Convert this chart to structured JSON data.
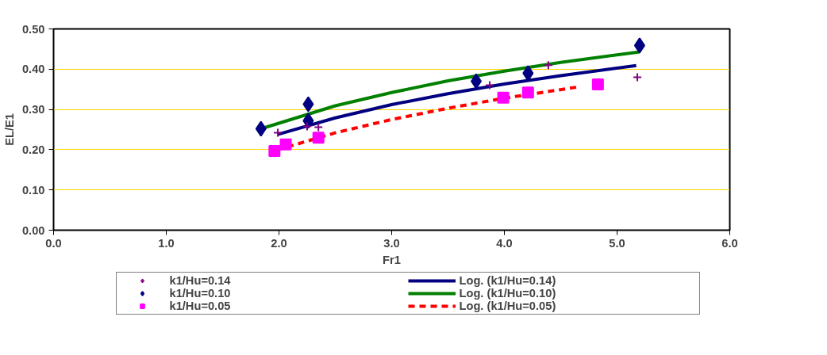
{
  "chart_data": {
    "type": "scatter",
    "xlabel": "Fr1",
    "ylabel": "EL/E1",
    "xlim": [
      0,
      6
    ],
    "ylim": [
      0,
      0.5
    ],
    "xticks": [
      {
        "value": 0,
        "label": "0.0"
      },
      {
        "value": 1,
        "label": "1.0"
      },
      {
        "value": 2,
        "label": "2.0"
      },
      {
        "value": 3,
        "label": "3.0"
      },
      {
        "value": 4,
        "label": "4.0"
      },
      {
        "value": 5,
        "label": "5.0"
      },
      {
        "value": 6,
        "label": "6.0"
      }
    ],
    "yticks": [
      {
        "value": 0,
        "label": "0.00"
      },
      {
        "value": 0.1,
        "label": "0.10"
      },
      {
        "value": 0.2,
        "label": "0.20"
      },
      {
        "value": 0.3,
        "label": "0.30"
      },
      {
        "value": 0.4,
        "label": "0.40"
      },
      {
        "value": 0.5,
        "label": "0.50"
      }
    ],
    "grid": "y",
    "legend": "bottom",
    "series": [
      {
        "name": "k1/Hu=0.14",
        "type": "scatter",
        "marker": "cross",
        "color": "#800080",
        "x": [
          1.99,
          2.25,
          2.35,
          3.87,
          4.39,
          5.18
        ],
        "values": [
          0.242,
          0.258,
          0.256,
          0.36,
          0.41,
          0.38
        ]
      },
      {
        "name": "k1/Hu=0.10",
        "type": "scatter",
        "marker": "diamond",
        "color": "#000080",
        "x": [
          1.84,
          2.26,
          2.26,
          3.75,
          4.21,
          5.2
        ],
        "values": [
          0.252,
          0.313,
          0.272,
          0.37,
          0.39,
          0.459
        ]
      },
      {
        "name": "k1/Hu=0.05",
        "type": "scatter",
        "marker": "square",
        "color": "#ff00ff",
        "x": [
          1.96,
          2.06,
          2.35,
          3.99,
          4.21,
          4.83
        ],
        "values": [
          0.197,
          0.213,
          0.23,
          0.329,
          0.342,
          0.362
        ]
      },
      {
        "name": "Log. (k1/Hu=0.14)",
        "type": "line",
        "line_style": "solid",
        "color": "#000080",
        "x": [
          1.99,
          2.5,
          3,
          3.5,
          4,
          4.5,
          5.17
        ],
        "values": [
          0.238,
          0.279,
          0.312,
          0.339,
          0.363,
          0.384,
          0.409
        ]
      },
      {
        "name": "Log. (k1/Hu=0.10)",
        "type": "line",
        "line_style": "solid",
        "color": "#008000",
        "x": [
          1.84,
          2.5,
          3,
          3.5,
          4,
          4.5,
          5.2
        ],
        "values": [
          0.252,
          0.309,
          0.342,
          0.371,
          0.395,
          0.417,
          0.443
        ]
      },
      {
        "name": "Log. (k1/Hu=0.05)",
        "type": "line",
        "line_style": "dashed",
        "color": "#ff0000",
        "x": [
          1.98,
          2.5,
          3,
          3.5,
          4,
          4.66
        ],
        "values": [
          0.199,
          0.242,
          0.275,
          0.303,
          0.328,
          0.356
        ]
      }
    ]
  }
}
